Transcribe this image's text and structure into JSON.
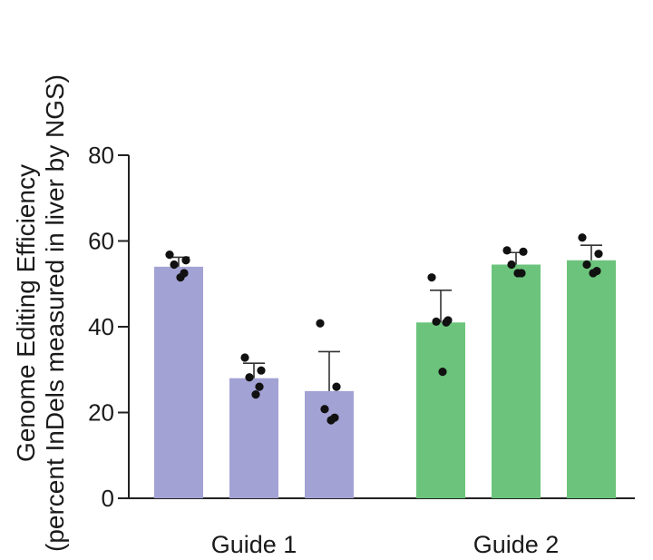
{
  "chart_data": {
    "type": "bar",
    "title": "",
    "xlabel": "",
    "ylabel_line1": "Genome Editing Efficiency",
    "ylabel_line2": "(percent InDels measured in liver by NGS)",
    "ylim": [
      0,
      80
    ],
    "yticks": [
      0,
      20,
      40,
      60,
      80
    ],
    "grid": false,
    "groups": [
      {
        "label": "Guide 1",
        "color": "#a3a2d4",
        "bars": [
          {
            "mean": 54,
            "err": 2.2,
            "points": [
              56.8,
              55.5,
              54.5,
              52.5,
              51.5
            ]
          },
          {
            "mean": 28,
            "err": 3.5,
            "points": [
              32.8,
              29.8,
              28.2,
              26.0,
              24.2
            ]
          },
          {
            "mean": 25,
            "err": 9.2,
            "points": [
              40.8,
              26.0,
              20.8,
              18.8,
              18.2
            ]
          }
        ]
      },
      {
        "label": "Guide 2",
        "color": "#6cc47c",
        "bars": [
          {
            "mean": 41,
            "err": 7.5,
            "points": [
              51.5,
              41.5,
              41.2,
              41.0,
              29.5
            ]
          },
          {
            "mean": 54.5,
            "err": 2.8,
            "points": [
              57.8,
              57.5,
              54.5,
              52.5,
              52.5
            ]
          },
          {
            "mean": 55.5,
            "err": 3.5,
            "points": [
              60.8,
              57.0,
              54.5,
              53.0,
              52.5
            ]
          }
        ]
      }
    ]
  }
}
